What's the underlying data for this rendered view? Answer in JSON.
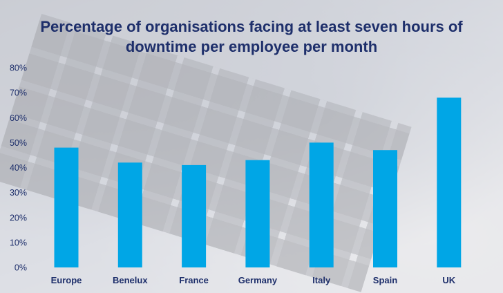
{
  "chart_data": {
    "type": "bar",
    "title": "Percentage of organisations facing at least seven hours of downtime per employee per month",
    "title_lines": [
      "Percentage of organisations facing at least seven hours of",
      "downtime per employee per month"
    ],
    "categories": [
      "Europe",
      "Benelux",
      "France",
      "Germany",
      "Italy",
      "Spain",
      "UK"
    ],
    "values": [
      48,
      42,
      41,
      43,
      50,
      47,
      68
    ],
    "y_ticks": [
      "0%",
      "10%",
      "20%",
      "30%",
      "40%",
      "50%",
      "60%",
      "70%",
      "80%"
    ],
    "ylim": [
      0,
      80
    ],
    "xlabel": "",
    "ylabel": "",
    "grid": false,
    "legend": "none",
    "bar_color": "#00a6e6",
    "text_color": "#1e2f6b"
  }
}
